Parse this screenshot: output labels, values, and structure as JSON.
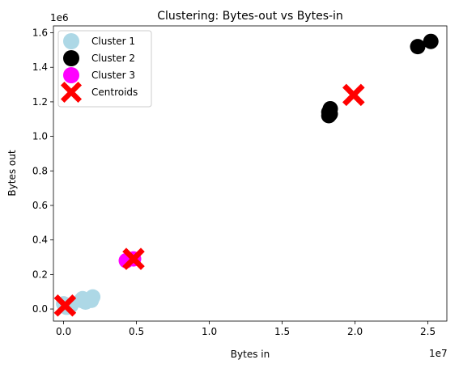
{
  "chart_data": {
    "type": "scatter",
    "title": "Clustering: Bytes-out vs Bytes-in",
    "xlabel": "Bytes in",
    "ylabel": "Bytes out",
    "x_offset_label": "1e7",
    "y_offset_label": "1e6",
    "xlim": [
      -0.07,
      2.63
    ],
    "ylim": [
      -0.07,
      1.64
    ],
    "x_ticks": [
      0.0,
      0.5,
      1.0,
      1.5,
      2.0,
      2.5
    ],
    "x_tick_labels": [
      "0.0",
      "0.5",
      "1.0",
      "1.5",
      "2.0",
      "2.5"
    ],
    "y_ticks": [
      0.0,
      0.2,
      0.4,
      0.6,
      0.8,
      1.0,
      1.2,
      1.4,
      1.6
    ],
    "y_tick_labels": [
      "0.0",
      "0.2",
      "0.4",
      "0.6",
      "0.8",
      "1.0",
      "1.2",
      "1.4",
      "1.6"
    ],
    "grid": false,
    "legend_position": "top-left",
    "series": [
      {
        "name": "Cluster 1",
        "color": "#add8e6",
        "marker": "circle",
        "points": [
          [
            0.0,
            0.03
          ],
          [
            0.02,
            0.01
          ],
          [
            0.05,
            0.02
          ],
          [
            0.12,
            0.05
          ],
          [
            0.13,
            0.06
          ],
          [
            0.15,
            0.04
          ],
          [
            0.19,
            0.05
          ],
          [
            0.2,
            0.07
          ]
        ]
      },
      {
        "name": "Cluster 2",
        "color": "#000000",
        "marker": "circle",
        "points": [
          [
            1.82,
            1.12
          ],
          [
            1.82,
            1.14
          ],
          [
            1.83,
            1.16
          ],
          [
            1.83,
            1.13
          ],
          [
            2.43,
            1.52
          ],
          [
            2.52,
            1.55
          ]
        ]
      },
      {
        "name": "Cluster 3",
        "color": "#ff00ff",
        "marker": "circle",
        "points": [
          [
            0.43,
            0.28
          ],
          [
            0.48,
            0.29
          ]
        ]
      },
      {
        "name": "Centroids",
        "color": "#ff0000",
        "marker": "X",
        "points": [
          [
            0.01,
            0.02
          ],
          [
            1.99,
            1.24
          ],
          [
            0.48,
            0.29
          ]
        ]
      }
    ]
  }
}
